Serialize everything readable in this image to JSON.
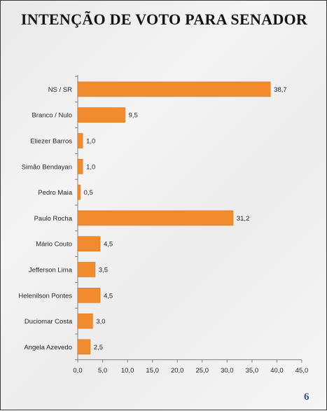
{
  "slide": {
    "title": "INTENÇÃO DE VOTO PARA SENADOR",
    "page_number": "6"
  },
  "colors": {
    "bar": "#f28a2e",
    "bar_edge": "#d9731c",
    "axis": "#7f7f7f",
    "title": "#141414",
    "page_number": "#34518c"
  },
  "chart_data": {
    "type": "bar",
    "orientation": "horizontal",
    "categories": [
      "NS / SR",
      "Branco / Nulo",
      "Eliezer Barros",
      "Simão Bendayan",
      "Pedro Maia",
      "Paulo Rocha",
      "Mário Couto",
      "Jefferson Lima",
      "Helenilson Pontes",
      "Duciomar Costa",
      "Angela Azevedo"
    ],
    "values": [
      38.7,
      9.5,
      1.0,
      1.0,
      0.5,
      31.2,
      4.5,
      3.5,
      4.5,
      3.0,
      2.5
    ],
    "value_labels": [
      "38,7",
      "9,5",
      "1,0",
      "1,0",
      "0,5",
      "31,2",
      "4,5",
      "3,5",
      "4,5",
      "3,0",
      "2,5"
    ],
    "xlim": [
      0,
      45
    ],
    "x_ticks": [
      0,
      5,
      10,
      15,
      20,
      25,
      30,
      35,
      40,
      45
    ],
    "x_tick_labels": [
      "0,0",
      "5,0",
      "10,0",
      "15,0",
      "20,0",
      "25,0",
      "30,0",
      "35,0",
      "40,0",
      "45,0"
    ],
    "grid": false,
    "legend": "none",
    "title": "INTENÇÃO DE VOTO PARA SENADOR",
    "xlabel": "",
    "ylabel": ""
  }
}
